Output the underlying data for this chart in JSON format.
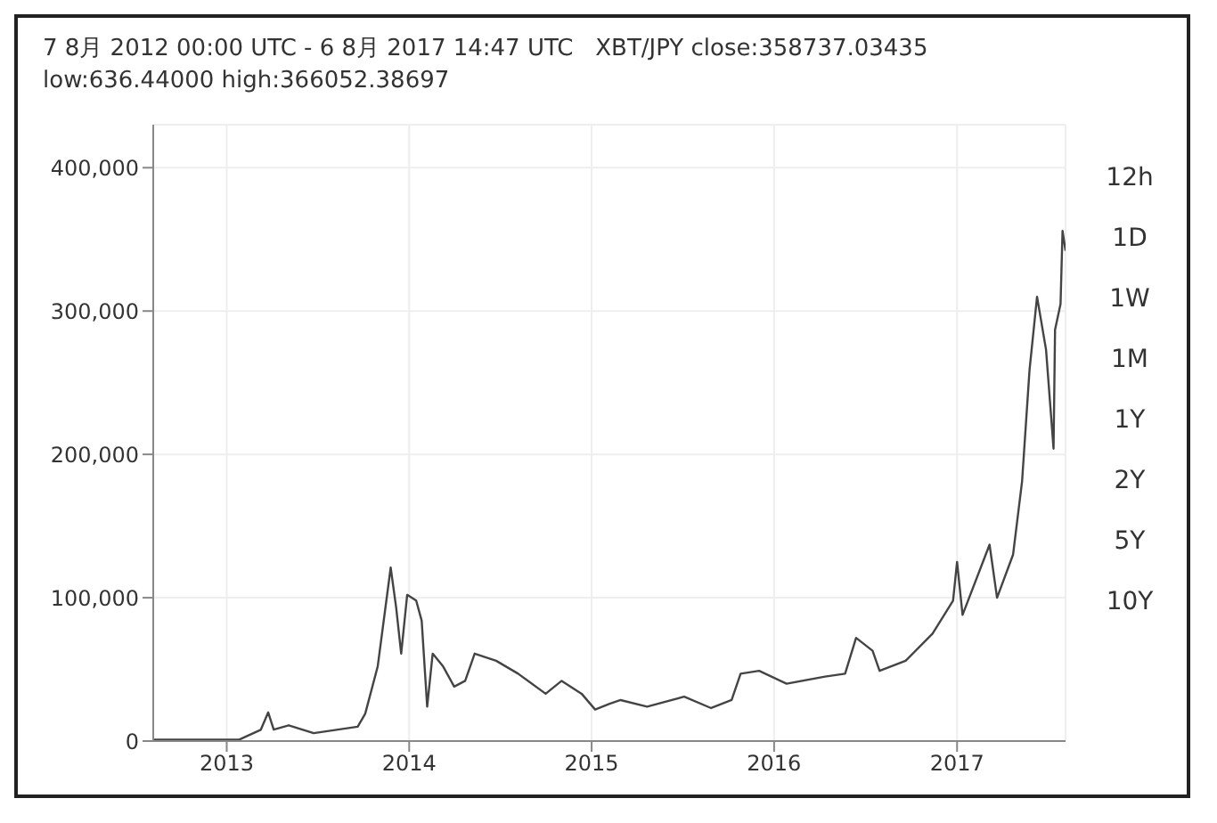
{
  "chart_data": {
    "type": "line",
    "title": "7 8月 2012 00:00 UTC - 6 8月 2017 14:47 UTC   XBT/JPY close:358737.03435",
    "subtitle": "low:636.44000 high:366052.38697",
    "color": "#444444",
    "grid": true,
    "x": [
      "2012-08-07",
      "2013-01-26",
      "2013-03-10",
      "2013-03-25",
      "2013-04-05",
      "2013-05-05",
      "2013-06-24",
      "2013-09-20",
      "2013-10-05",
      "2013-10-30",
      "2013-11-25",
      "2013-12-06",
      "2013-12-16",
      "2013-12-28",
      "2014-01-15",
      "2014-01-26",
      "2014-02-06",
      "2014-02-17",
      "2014-03-10",
      "2014-04-01",
      "2014-04-23",
      "2014-05-12",
      "2014-06-24",
      "2014-08-07",
      "2014-10-01",
      "2014-11-02",
      "2014-12-12",
      "2015-01-08",
      "2015-02-06",
      "2015-02-28",
      "2015-04-22",
      "2015-07-05",
      "2015-08-28",
      "2015-10-08",
      "2015-10-26",
      "2015-12-02",
      "2016-01-26",
      "2016-04-12",
      "2016-05-22",
      "2016-06-13",
      "2016-07-16",
      "2016-07-30",
      "2016-09-20",
      "2016-11-13",
      "2016-12-24",
      "2017-01-01",
      "2017-01-12",
      "2017-03-07",
      "2017-03-22",
      "2017-04-23",
      "2017-05-11",
      "2017-05-26",
      "2017-06-10",
      "2017-06-28",
      "2017-07-13",
      "2017-07-16",
      "2017-07-27",
      "2017-07-31",
      "2017-08-06"
    ],
    "values": [
      1000,
      1000,
      7800,
      20000,
      8000,
      11000,
      5500,
      10000,
      19000,
      52000,
      121000,
      93000,
      61000,
      102000,
      98000,
      84000,
      24000,
      61000,
      52000,
      38000,
      42000,
      61000,
      56000,
      47000,
      33000,
      42000,
      33000,
      22000,
      26000,
      28600,
      24000,
      31000,
      23000,
      28600,
      47000,
      49000,
      40000,
      45000,
      47000,
      72000,
      63000,
      49000,
      56000,
      75000,
      98000,
      125000,
      88000,
      137000,
      100000,
      130000,
      181000,
      259000,
      310000,
      273000,
      204000,
      287000,
      305000,
      356000,
      342000
    ],
    "xlim": [
      "2012-08-07",
      "2017-08-06"
    ],
    "xticks": [
      {
        "value": "2013-01-01",
        "label": "2013"
      },
      {
        "value": "2014-01-01",
        "label": "2014"
      },
      {
        "value": "2015-01-01",
        "label": "2015"
      },
      {
        "value": "2016-01-01",
        "label": "2016"
      },
      {
        "value": "2017-01-01",
        "label": "2017"
      }
    ],
    "ylim": [
      0,
      430000
    ],
    "yticks": [
      0,
      {
        "value": 100000,
        "label": "100,000"
      },
      {
        "value": 200000,
        "label": "200,000"
      },
      {
        "value": 300000,
        "label": "300,000"
      },
      {
        "value": 400000,
        "label": "400,000"
      }
    ],
    "annotations": [
      "12h",
      "1D",
      "1W",
      "1M",
      "1Y",
      "2Y",
      "5Y",
      "10Y"
    ]
  }
}
